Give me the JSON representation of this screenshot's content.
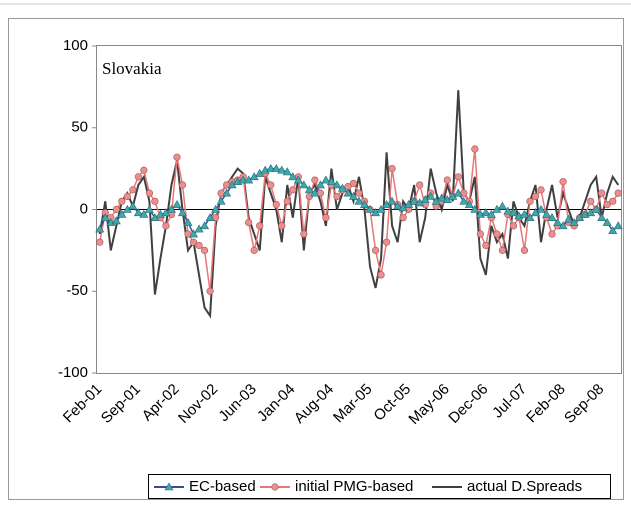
{
  "chart_data": {
    "type": "line",
    "title": "Slovakia",
    "categories": [
      "Feb-01",
      null,
      null,
      null,
      null,
      null,
      null,
      "Sep-01",
      null,
      null,
      null,
      null,
      null,
      null,
      "Apr-02",
      null,
      null,
      null,
      null,
      null,
      null,
      "Nov-02",
      null,
      null,
      null,
      null,
      null,
      null,
      "Jun-03",
      null,
      null,
      null,
      null,
      null,
      null,
      "Jan-04",
      null,
      null,
      null,
      null,
      null,
      null,
      "Aug-04",
      null,
      null,
      null,
      null,
      null,
      null,
      "Mar-05",
      null,
      null,
      null,
      null,
      null,
      null,
      "Oct-05",
      null,
      null,
      null,
      null,
      null,
      null,
      "May-06",
      null,
      null,
      null,
      null,
      null,
      null,
      "Dec-06",
      null,
      null,
      null,
      null,
      null,
      null,
      "Jul-07",
      null,
      null,
      null,
      null,
      null,
      null,
      "Feb-08",
      null,
      null,
      null,
      null,
      null,
      null,
      "Sep-08",
      null,
      null,
      null
    ],
    "series": [
      {
        "name": "EC-based",
        "color": "#3a4a9a",
        "marker": "triangle",
        "marker_color": "#3fa9a9",
        "values": [
          -12,
          -5,
          -8,
          -7,
          -3,
          0,
          2,
          -2,
          -3,
          0,
          -5,
          -3,
          -2,
          0,
          3,
          -2,
          -8,
          -15,
          -12,
          -10,
          -5,
          0,
          5,
          10,
          15,
          17,
          18,
          18,
          20,
          22,
          24,
          25,
          25,
          24,
          23,
          20,
          18,
          15,
          12,
          10,
          15,
          18,
          17,
          15,
          13,
          10,
          8,
          5,
          3,
          0,
          -2,
          0,
          3,
          5,
          2,
          1,
          3,
          5,
          4,
          6,
          8,
          5,
          7,
          6,
          8,
          10,
          5,
          3,
          0,
          -3,
          -2,
          -3,
          0,
          2,
          -1,
          -2,
          -4,
          -3,
          -5,
          -2,
          0,
          -3,
          -5,
          -8,
          -10,
          -6,
          -8,
          -5,
          -3,
          -2,
          0,
          -5,
          -8,
          -13,
          -10
        ]
      },
      {
        "name": "initial PMG-based",
        "color": "#e87878",
        "marker": "circle",
        "marker_color": "#e89090",
        "values": [
          -20,
          -2,
          -5,
          0,
          5,
          8,
          12,
          20,
          24,
          10,
          5,
          -5,
          -10,
          -3,
          32,
          15,
          -15,
          -20,
          -22,
          -25,
          -50,
          -5,
          10,
          15,
          17,
          18,
          20,
          -8,
          -25,
          -10,
          22,
          15,
          3,
          -10,
          5,
          12,
          20,
          -15,
          8,
          18,
          10,
          -5,
          15,
          8,
          12,
          14,
          16,
          10,
          5,
          0,
          -25,
          -40,
          -20,
          25,
          3,
          -5,
          0,
          5,
          15,
          3,
          10,
          2,
          5,
          18,
          8,
          20,
          10,
          5,
          37,
          -15,
          -22,
          -5,
          -15,
          -25,
          -3,
          -10,
          -5,
          -25,
          5,
          8,
          12,
          -5,
          -15,
          -10,
          17,
          -8,
          -10,
          -5,
          -3,
          5,
          0,
          10,
          3,
          5,
          10
        ]
      },
      {
        "name": "actual D.Spreads",
        "color": "#404040",
        "values": [
          -15,
          5,
          -25,
          -10,
          5,
          10,
          2,
          15,
          20,
          5,
          -52,
          -30,
          -10,
          15,
          30,
          0,
          -25,
          -20,
          -40,
          -60,
          -65,
          -10,
          10,
          15,
          20,
          25,
          22,
          -5,
          -15,
          -25,
          20,
          10,
          0,
          -20,
          15,
          -5,
          20,
          -25,
          10,
          15,
          5,
          -10,
          25,
          0,
          10,
          15,
          5,
          20,
          0,
          -35,
          -48,
          -30,
          35,
          -10,
          -20,
          5,
          0,
          15,
          -20,
          -5,
          25,
          10,
          0,
          15,
          5,
          73,
          10,
          5,
          20,
          -30,
          -40,
          -10,
          -20,
          -15,
          -30,
          5,
          -5,
          -10,
          5,
          15,
          -20,
          0,
          15,
          -5,
          10,
          0,
          -10,
          -5,
          5,
          15,
          20,
          -5,
          10,
          20,
          15
        ]
      }
    ],
    "ylim": [
      -100,
      100
    ],
    "yticks": [
      -100,
      -50,
      0,
      50,
      100
    ],
    "legend": "bottom"
  }
}
